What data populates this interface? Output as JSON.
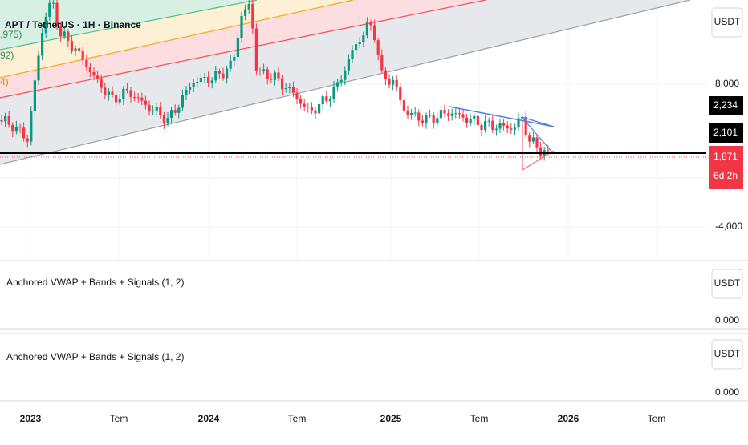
{
  "header": {
    "title": "APT / TetherUS · 1H · Binance"
  },
  "legend": [
    ",975)",
    "92)",
    "4)"
  ],
  "price_axis": {
    "currency": "USDT",
    "ticks": [
      "8.000",
      "-4,000"
    ],
    "badges": [
      "2,234",
      "2,101",
      "1,871",
      "6d 2h"
    ]
  },
  "panes": [
    {
      "title": "Anchored VWAP + Bands + Signals (1, 2)",
      "currency": "USDT",
      "tick": "0.000"
    },
    {
      "title": "Anchored VWAP + Bands + Signals (1, 2)",
      "currency": "USDT",
      "tick": "0.000"
    }
  ],
  "time_axis": [
    "2023",
    "Tem",
    "2024",
    "Tem",
    "2025",
    "Tem",
    "2026",
    "Tem"
  ]
}
